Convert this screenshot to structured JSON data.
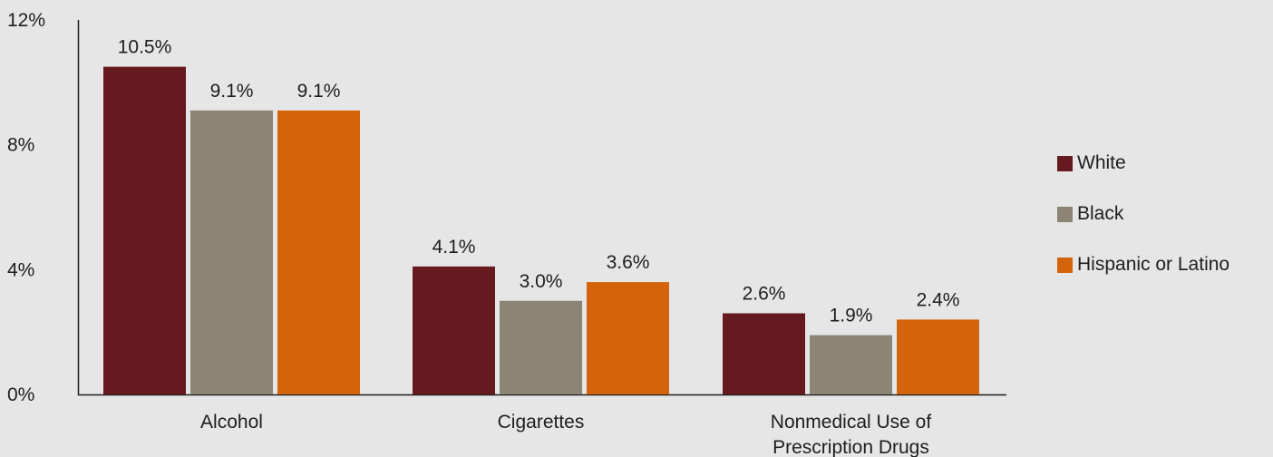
{
  "chart_data": {
    "type": "bar",
    "categories": [
      "Alcohol",
      "Cigarettes",
      "Nonmedical Use of Prescription Drugs"
    ],
    "category_lines": [
      [
        "Alcohol"
      ],
      [
        "Cigarettes"
      ],
      [
        "Nonmedical Use of",
        "Prescription Drugs"
      ]
    ],
    "series": [
      {
        "name": "White",
        "color": "#641a1e",
        "values": [
          10.5,
          4.1,
          2.6
        ],
        "labels": [
          "10.5%",
          "4.1%",
          "2.6%"
        ]
      },
      {
        "name": "Black",
        "color": "#8c8475",
        "values": [
          9.1,
          3.0,
          1.9
        ],
        "labels": [
          "9.1%",
          "3.0%",
          "1.9%"
        ]
      },
      {
        "name": "Hispanic or Latino",
        "color": "#d4640b",
        "values": [
          9.1,
          3.6,
          2.4
        ],
        "labels": [
          "9.1%",
          "3.6%",
          "2.4%"
        ]
      }
    ],
    "ylim": [
      0,
      12
    ],
    "yticks": [
      0,
      4,
      8,
      12
    ],
    "ytick_labels": [
      "0%",
      "4%",
      "8%",
      "12%"
    ],
    "grid": false,
    "legend_position": "right"
  }
}
